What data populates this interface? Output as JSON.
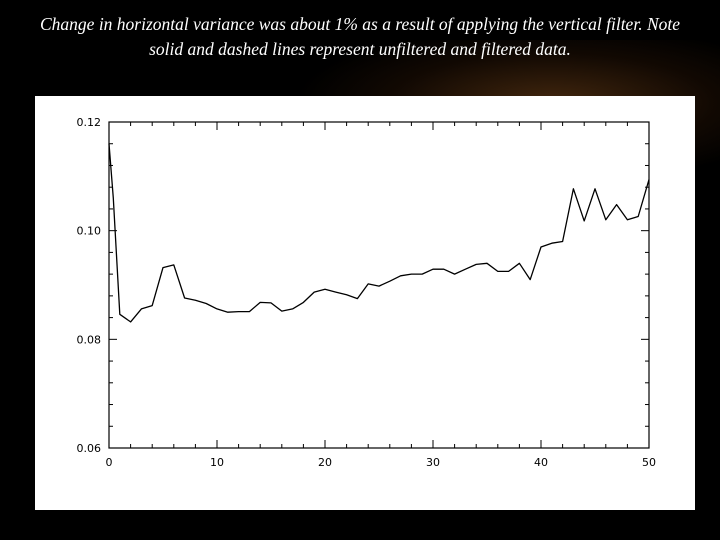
{
  "caption": "Change in horizontal variance was about 1% as a result of applying the vertical filter. Note solid and dashed lines represent unfiltered and filtered data.",
  "chart_data": {
    "type": "line",
    "title": "",
    "xlabel": "",
    "ylabel": "",
    "xlim": [
      0,
      50
    ],
    "ylim": [
      0.06,
      0.12
    ],
    "x_ticks": [
      0,
      10,
      20,
      30,
      40,
      50
    ],
    "x_tick_labels": [
      "0",
      "10",
      "20",
      "30",
      "40",
      "50"
    ],
    "y_ticks": [
      0.06,
      0.08,
      0.1,
      0.12
    ],
    "y_tick_labels": [
      "0.06",
      "0.08",
      "0.10",
      "0.12"
    ],
    "grid": false,
    "series": [
      {
        "style": "solid",
        "x": [
          0,
          0.4,
          1,
          2,
          3,
          4,
          5,
          6,
          7,
          8,
          9,
          10,
          11,
          12,
          13,
          14,
          15,
          16,
          17,
          18,
          19,
          20,
          21,
          22,
          23,
          24,
          25,
          26,
          27,
          28,
          29,
          30,
          31,
          32,
          33,
          34,
          35,
          36,
          37,
          38,
          39,
          40,
          41,
          42,
          43,
          44,
          45,
          46,
          47,
          48,
          49,
          50
        ],
        "y": [
          0.116,
          0.106,
          0.0846,
          0.0832,
          0.0856,
          0.0862,
          0.0932,
          0.0937,
          0.0876,
          0.0872,
          0.0866,
          0.0856,
          0.085,
          0.0851,
          0.0851,
          0.0868,
          0.0867,
          0.0852,
          0.0856,
          0.0868,
          0.0887,
          0.0892,
          0.0887,
          0.0882,
          0.0875,
          0.0902,
          0.0898,
          0.0907,
          0.0917,
          0.092,
          0.092,
          0.0929,
          0.0929,
          0.092,
          0.0929,
          0.0938,
          0.094,
          0.0925,
          0.0925,
          0.094,
          0.091,
          0.097,
          0.0977,
          0.098,
          0.1077,
          0.1018,
          0.1077,
          0.102,
          0.1048,
          0.102,
          0.1026,
          0.1094
        ]
      }
    ]
  }
}
